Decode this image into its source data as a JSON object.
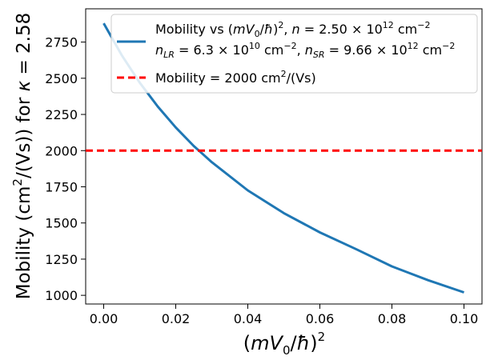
{
  "chart_data": {
    "type": "line",
    "xlabel_parts": [
      "(",
      "mV",
      "0",
      "/",
      "ħ",
      ")",
      "2"
    ],
    "ylabel_parts": [
      "Mobility (cm",
      "2",
      "/(Vs)) for  ",
      "κ",
      " = 2.58"
    ],
    "xlim": [
      -0.005,
      0.105
    ],
    "ylim": [
      940,
      2980
    ],
    "x_ticks": [
      0.0,
      0.02,
      0.04,
      0.06,
      0.08,
      0.1
    ],
    "x_tick_labels": [
      "0.00",
      "0.02",
      "0.04",
      "0.06",
      "0.08",
      "0.10"
    ],
    "y_ticks": [
      1000,
      1250,
      1500,
      1750,
      2000,
      2250,
      2500,
      2750
    ],
    "y_tick_labels": [
      "1000",
      "1250",
      "1500",
      "1750",
      "2000",
      "2250",
      "2500",
      "2750"
    ],
    "series": [
      {
        "name": "Mobility vs (mV0/ħ)^2, n = 2.50×10^12 cm^-2; n_LR = 6.3×10^10 cm^-2, n_SR = 9.66×10^12 cm^-2",
        "color": "#1f77b4",
        "style": "solid",
        "x": [
          0.0,
          0.005,
          0.01,
          0.015,
          0.02,
          0.025,
          0.03,
          0.04,
          0.05,
          0.06,
          0.07,
          0.08,
          0.09,
          0.1
        ],
        "y": [
          2880,
          2660,
          2470,
          2305,
          2160,
          2032,
          1920,
          1725,
          1568,
          1435,
          1320,
          1200,
          1105,
          1020
        ]
      },
      {
        "name": "Mobility = 2000 cm^2/(Vs)",
        "color": "#ff0000",
        "style": "dashed",
        "x": [
          -0.005,
          0.105
        ],
        "y": [
          2000,
          2000
        ]
      }
    ],
    "legend": {
      "placement": "top-right",
      "entry1_line1": [
        "Mobility vs (",
        "mV",
        "0",
        "/",
        "ħ",
        ")",
        "2",
        ", ",
        "n",
        " = 2.50 × 10",
        "12",
        " cm",
        "−2"
      ],
      "entry1_line2": [
        "n",
        "LR",
        " = 6.3 × 10",
        "10",
        " cm",
        "−2",
        ",  ",
        "n",
        "SR",
        " = 9.66 × 10",
        "12",
        " cm",
        "−2"
      ],
      "entry2": [
        "Mobility = 2000 cm",
        "2",
        "/(Vs)"
      ]
    },
    "grid": false
  }
}
